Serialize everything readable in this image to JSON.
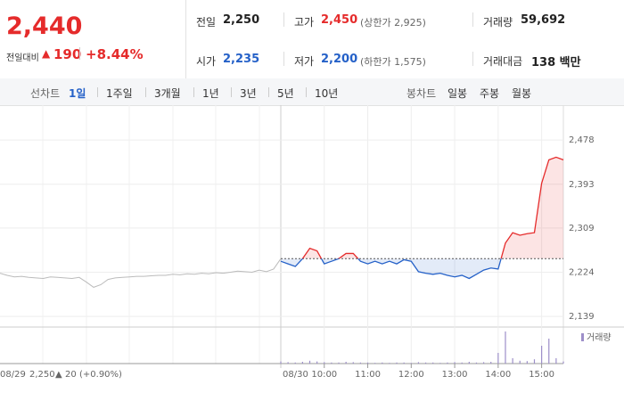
{
  "header": {
    "price": "2,440",
    "change_caption": "전일대비",
    "change": "190",
    "change_rate": "+8.44%"
  },
  "stats": [
    {
      "label": "전일",
      "value": "2,250",
      "color": "#222222"
    },
    {
      "label": "고가",
      "value": "2,450",
      "note": "(상한가 2,925)",
      "color": "#e52b2b"
    },
    {
      "label": "거래량",
      "value": "59,692",
      "color": "#222222"
    },
    {
      "label": "시가",
      "value": "2,235",
      "color": "#2561c8"
    },
    {
      "label": "저가",
      "value": "2,200",
      "note": "(하한가 1,575)",
      "color": "#2561c8"
    },
    {
      "label": "거래대금",
      "value": "138 백만",
      "color": "#222222"
    }
  ],
  "tabs": {
    "line_label": "선차트",
    "periods": [
      "1일",
      "1주일",
      "3개월",
      "1년",
      "3년",
      "5년",
      "10년"
    ],
    "selected": 0,
    "candle_label": "봉차트",
    "candles": [
      "일봉",
      "주봉",
      "월봉"
    ]
  },
  "chart_data": {
    "type": "line",
    "ylim": [
      2122,
      2528
    ],
    "yticks": [
      {
        "value": 2139,
        "label": "2,139"
      },
      {
        "value": 2224,
        "label": "2,224"
      },
      {
        "value": 2309,
        "label": "2,309"
      },
      {
        "value": 2393,
        "label": "2,393"
      },
      {
        "value": 2478,
        "label": "2,478"
      }
    ],
    "reference": 2250,
    "series": [
      {
        "name": "08/29",
        "color": "#bbbbbb",
        "values": [
          2222,
          2218,
          2215,
          2216,
          2214,
          2213,
          2212,
          2215,
          2214,
          2213,
          2212,
          2214,
          2205,
          2195,
          2200,
          2210,
          2213,
          2214,
          2215,
          2216,
          2216,
          2217,
          2218,
          2218,
          2220,
          2219,
          2221,
          2220,
          2222,
          2221,
          2223,
          2222,
          2224,
          2226,
          2225,
          2224,
          2228,
          2225,
          2230,
          2250
        ]
      },
      {
        "name": "08/30",
        "up_color": "#e52b2b",
        "down_color": "#2561c8",
        "x": [
          "09:00",
          "09:10",
          "09:20",
          "09:30",
          "09:40",
          "09:50",
          "10:00",
          "10:10",
          "10:20",
          "10:30",
          "10:40",
          "10:50",
          "11:00",
          "11:10",
          "11:20",
          "11:30",
          "11:40",
          "11:50",
          "12:00",
          "12:10",
          "12:20",
          "12:30",
          "12:40",
          "12:50",
          "13:00",
          "13:10",
          "13:20",
          "13:30",
          "13:40",
          "13:50",
          "14:00",
          "14:10",
          "14:20",
          "14:30",
          "14:40",
          "14:50",
          "15:00",
          "15:10",
          "15:20",
          "15:30"
        ],
        "values": [
          2245,
          2240,
          2235,
          2250,
          2270,
          2265,
          2240,
          2245,
          2250,
          2260,
          2260,
          2245,
          2240,
          2245,
          2240,
          2245,
          2240,
          2248,
          2245,
          2225,
          2222,
          2220,
          2222,
          2218,
          2215,
          2218,
          2212,
          2220,
          2228,
          2232,
          2230,
          2280,
          2300,
          2295,
          2298,
          2300,
          2395,
          2440,
          2445,
          2440
        ]
      }
    ],
    "xticks": [
      "10:00",
      "11:00",
      "12:00",
      "13:00",
      "14:00",
      "15:00"
    ],
    "volume": {
      "name": "거래량",
      "color": "#9d8fc9",
      "ylim": [
        0,
        10000
      ],
      "values": [
        600,
        400,
        300,
        500,
        800,
        600,
        400,
        300,
        300,
        500,
        400,
        300,
        300,
        200,
        300,
        200,
        300,
        300,
        200,
        400,
        300,
        300,
        200,
        300,
        400,
        300,
        500,
        300,
        400,
        500,
        3000,
        9000,
        1500,
        800,
        700,
        1200,
        5000,
        7000,
        1500,
        600
      ]
    },
    "prev_summary": {
      "close": "2,250",
      "change": "20",
      "rate": "(+0.90%)"
    }
  }
}
